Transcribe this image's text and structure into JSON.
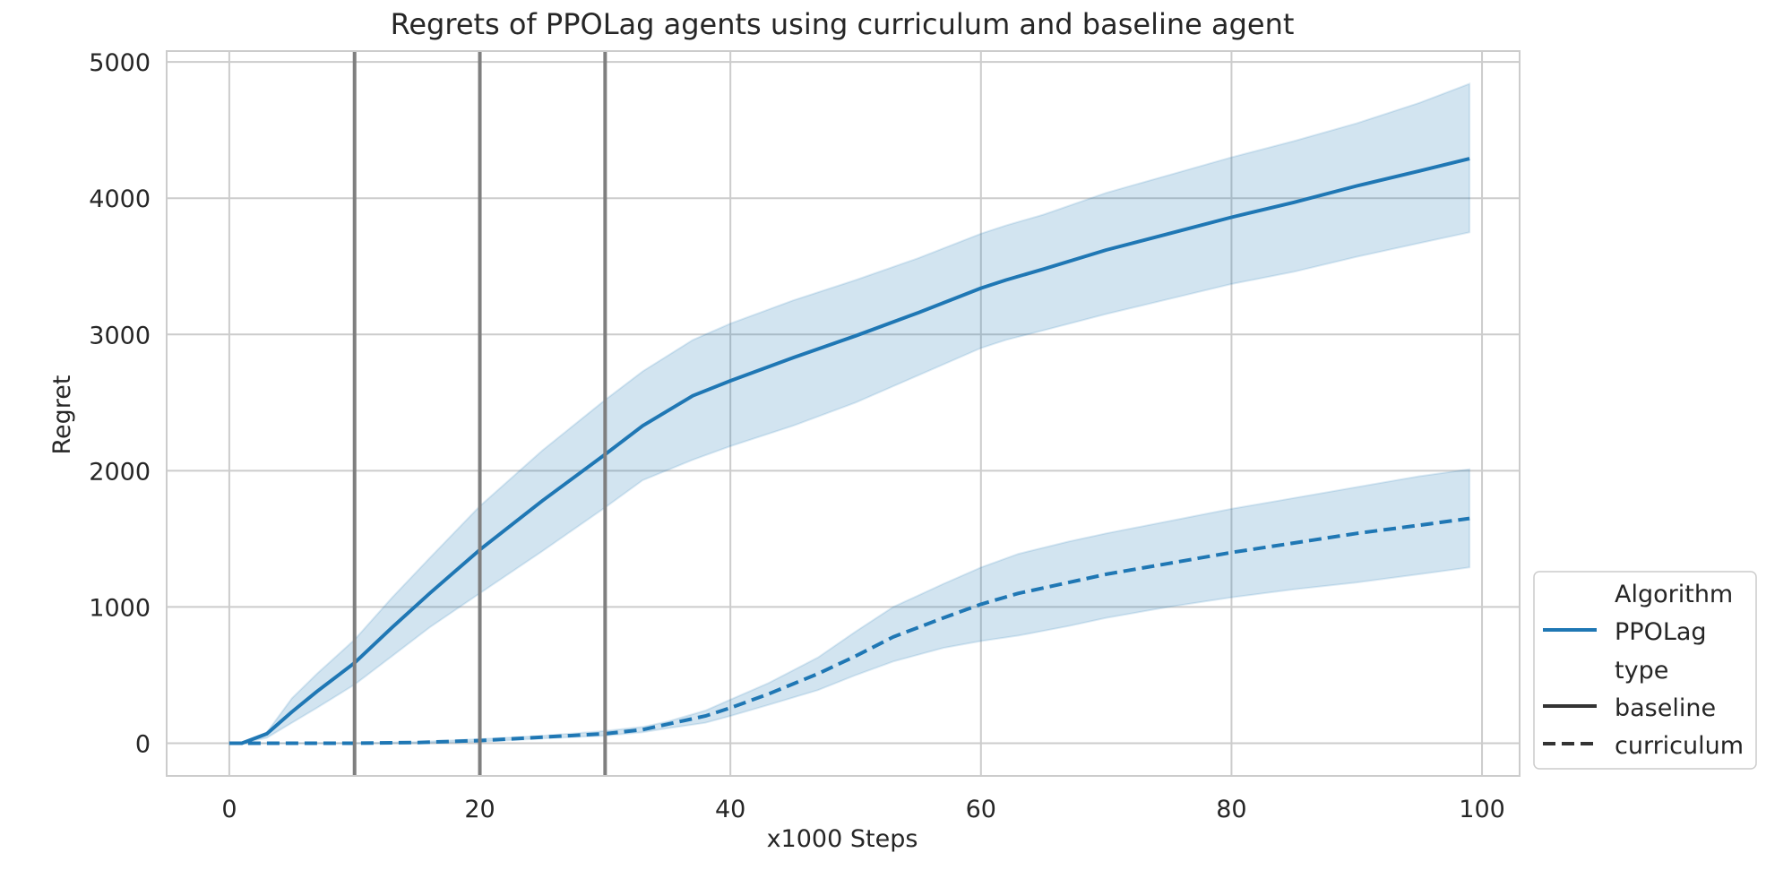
{
  "chart_data": {
    "type": "line",
    "title": "Regrets of PPOLag agents using curriculum and baseline agent",
    "xlabel": "x1000 Steps",
    "ylabel": "Regret",
    "xlim": [
      -5,
      103
    ],
    "ylim": [
      -240,
      5080
    ],
    "xticks": [
      0,
      20,
      40,
      60,
      80,
      100
    ],
    "yticks": [
      0,
      1000,
      2000,
      3000,
      4000,
      5000
    ],
    "grid": true,
    "vlines": [
      10,
      20,
      30
    ],
    "legend_position": "lower-right outside",
    "legend": [
      {
        "kind": "header",
        "label": "Algorithm"
      },
      {
        "kind": "line",
        "label": "PPOLag",
        "style": "solid",
        "color": "#1f77b4"
      },
      {
        "kind": "header",
        "label": "type"
      },
      {
        "kind": "line",
        "label": "baseline",
        "style": "solid",
        "color": "#333333"
      },
      {
        "kind": "line",
        "label": "curriculum",
        "style": "dashed",
        "color": "#333333"
      }
    ],
    "colors": {
      "line": "#1f77b4",
      "band": "#1f77b4",
      "vline": "#7f7f7f",
      "grid": "#cccccc",
      "spine": "#cccccc"
    },
    "series": [
      {
        "algorithm": "PPOLag",
        "type": "baseline",
        "style": "solid",
        "x": [
          0,
          1,
          3,
          5,
          7,
          10,
          13,
          16,
          20,
          25,
          30,
          33,
          37,
          40,
          45,
          50,
          55,
          60,
          62,
          65,
          70,
          75,
          80,
          85,
          90,
          95,
          99
        ],
        "y": [
          0,
          0,
          70,
          230,
          380,
          590,
          850,
          1100,
          1420,
          1780,
          2120,
          2330,
          2550,
          2660,
          2830,
          2990,
          3160,
          3340,
          3400,
          3480,
          3620,
          3740,
          3860,
          3970,
          4090,
          4200,
          4290
        ],
        "lower": [
          0,
          0,
          40,
          150,
          260,
          430,
          640,
          850,
          1100,
          1410,
          1730,
          1930,
          2080,
          2180,
          2330,
          2500,
          2700,
          2900,
          2960,
          3030,
          3150,
          3260,
          3370,
          3460,
          3570,
          3670,
          3750
        ],
        "upper": [
          0,
          0,
          80,
          330,
          510,
          760,
          1070,
          1360,
          1740,
          2150,
          2520,
          2730,
          2960,
          3080,
          3250,
          3400,
          3560,
          3740,
          3800,
          3880,
          4040,
          4170,
          4300,
          4420,
          4550,
          4700,
          4840
        ]
      },
      {
        "algorithm": "PPOLag",
        "type": "curriculum",
        "style": "dashed",
        "x": [
          0,
          1,
          3,
          5,
          10,
          15,
          20,
          25,
          30,
          33,
          35,
          38,
          40,
          43,
          47,
          50,
          53,
          57,
          60,
          63,
          67,
          70,
          75,
          80,
          85,
          90,
          95,
          99
        ],
        "y": [
          0,
          0,
          0,
          0,
          0,
          5,
          20,
          45,
          70,
          100,
          140,
          200,
          260,
          360,
          510,
          640,
          780,
          920,
          1020,
          1100,
          1180,
          1240,
          1320,
          1400,
          1470,
          1540,
          1600,
          1650
        ],
        "lower": [
          0,
          0,
          0,
          0,
          0,
          0,
          10,
          35,
          55,
          80,
          110,
          150,
          200,
          280,
          390,
          500,
          600,
          700,
          750,
          790,
          860,
          920,
          1000,
          1070,
          1130,
          1180,
          1240,
          1290
        ],
        "upper": [
          0,
          0,
          0,
          0,
          0,
          10,
          30,
          55,
          90,
          120,
          160,
          240,
          320,
          440,
          630,
          820,
          1000,
          1170,
          1290,
          1390,
          1480,
          1540,
          1630,
          1720,
          1800,
          1880,
          1960,
          2010
        ]
      }
    ]
  }
}
